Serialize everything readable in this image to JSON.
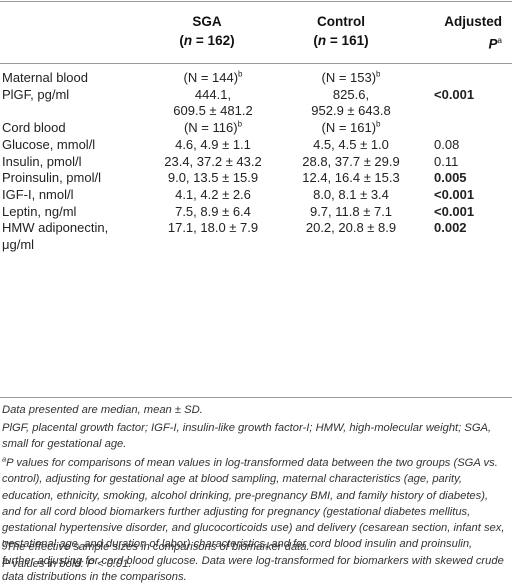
{
  "header": {
    "col_sga": "SGA",
    "col_sga_n_prefix": "(",
    "col_sga_n_var": "n",
    "col_sga_n_value": " = 162)",
    "col_control": "Control",
    "col_control_n_prefix": "(",
    "col_control_n_var": "n",
    "col_control_n_value": " = 161)",
    "col_adjusted": "Adjusted",
    "col_adjusted_p": "P",
    "col_adjusted_sup": "a"
  },
  "rows": [
    {
      "label": "Maternal blood",
      "sga": "(N = 144)",
      "sga_sup": "b",
      "control": "(N = 153)",
      "control_sup": "b",
      "p": "",
      "bold": false
    },
    {
      "label": "PlGF, pg/ml",
      "sga": "444.1,",
      "control": "825.6,",
      "p": "<0.001",
      "bold": true
    },
    {
      "label": "",
      "sga": "609.5 ± 481.2",
      "control": "952.9 ± 643.8",
      "p": "",
      "bold": false
    },
    {
      "label": "Cord blood",
      "sga": "(N = 116)",
      "sga_sup": "b",
      "control": "(N = 161)",
      "control_sup": "b",
      "p": "",
      "bold": false
    },
    {
      "label": "Glucose, mmol/l",
      "sga": "4.6, 4.9 ± 1.1",
      "control": "4.5, 4.5 ± 1.0",
      "p": "0.08",
      "bold": false
    },
    {
      "label": "Insulin, pmol/l",
      "sga": "23.4, 37.2 ± 43.2",
      "control": "28.8, 37.7 ± 29.9",
      "p": "0.11",
      "bold": false
    },
    {
      "label": "Proinsulin, pmol/l",
      "sga": "9.0, 13.5 ± 15.9",
      "control": "12.4, 16.4 ± 15.3",
      "p": "0.005",
      "bold": true
    },
    {
      "label": "IGF-I, nmol/l",
      "sga": "4.1, 4.2 ± 2.6",
      "control": "8.0, 8.1 ± 3.4",
      "p": "<0.001",
      "bold": true
    },
    {
      "label": "Leptin, ng/ml",
      "sga": "7.5, 8.9 ± 6.4",
      "control": "9.7, 11.8 ± 7.1",
      "p": "<0.001",
      "bold": true
    },
    {
      "label": "HMW adiponectin,",
      "sga": "17.1, 18.0 ± 7.9",
      "control": "20.2, 20.8 ± 8.9",
      "p": "0.002",
      "bold": true
    },
    {
      "label": "μg/ml",
      "sga": "",
      "control": "",
      "p": "",
      "bold": false
    }
  ],
  "footnotes": {
    "data_presented": "Data presented are median, mean ± SD.",
    "abbreviations": "PlGF, placental growth factor; IGF-I, insulin-like growth factor-I; HMW, high-molecular weight; SGA, small for gestational age.",
    "note_a_marker": "a",
    "note_a": "P values for comparisons of mean values in log-transformed data between the two groups (SGA vs. control), adjusting for gestational age at blood sampling, maternal characteristics (age, parity, education, ethnicity, smoking, alcohol drinking, pre-pregnancy BMI, and family history of diabetes), and for all cord blood biomarkers further adjusting for pregnancy (gestational diabetes mellitus, gestational hypertensive disorder, and glucocorticoids use) and delivery (cesarean section, infant sex, gestational age, and duration of labor) characteristics, and for cord blood insulin and proinsulin, further adjusting for cord blood glucose. Data were log-transformed for biomarkers with skewed crude data distributions in the comparisons.",
    "note_b_marker": "b",
    "note_b": "The effective sample sizes in comparisons of biomarker data.",
    "bold_note": "P values in bold: P < 0.01."
  }
}
